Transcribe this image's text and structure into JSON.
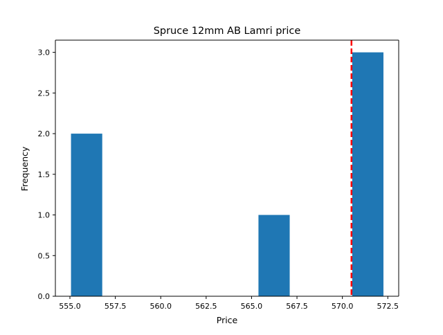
{
  "chart_data": {
    "type": "bar",
    "subtype": "histogram",
    "title": "Spruce 12mm AB Lamri price",
    "xlabel": "Price",
    "ylabel": "Frequency",
    "xlim": [
      554.2,
      573.1
    ],
    "ylim": [
      0.0,
      3.15
    ],
    "x_ticks": [
      555.0,
      557.5,
      560.0,
      562.5,
      565.0,
      567.5,
      570.0,
      572.5
    ],
    "x_tick_labels": [
      "555.0",
      "557.5",
      "560.0",
      "562.5",
      "565.0",
      "567.5",
      "570.0",
      "572.5"
    ],
    "y_ticks": [
      0.0,
      0.5,
      1.0,
      1.5,
      2.0,
      2.5,
      3.0
    ],
    "y_tick_labels": [
      "0.0",
      "0.5",
      "1.0",
      "1.5",
      "2.0",
      "2.5",
      "3.0"
    ],
    "bins": [
      {
        "x0": 555.06,
        "x1": 556.78,
        "count": 2
      },
      {
        "x0": 556.78,
        "x1": 558.5,
        "count": 0
      },
      {
        "x0": 558.5,
        "x1": 560.22,
        "count": 0
      },
      {
        "x0": 560.22,
        "x1": 561.94,
        "count": 0
      },
      {
        "x0": 561.94,
        "x1": 563.66,
        "count": 0
      },
      {
        "x0": 563.66,
        "x1": 565.38,
        "count": 0
      },
      {
        "x0": 565.38,
        "x1": 567.1,
        "count": 1
      },
      {
        "x0": 567.1,
        "x1": 568.82,
        "count": 0
      },
      {
        "x0": 568.82,
        "x1": 570.54,
        "count": 0
      },
      {
        "x0": 570.54,
        "x1": 572.26,
        "count": 3
      }
    ],
    "reference_line": {
      "x": 570.5,
      "color": "#ff0000",
      "style": "dashed"
    },
    "bar_color": "#1f77b4",
    "grid": false,
    "legend": "none"
  }
}
